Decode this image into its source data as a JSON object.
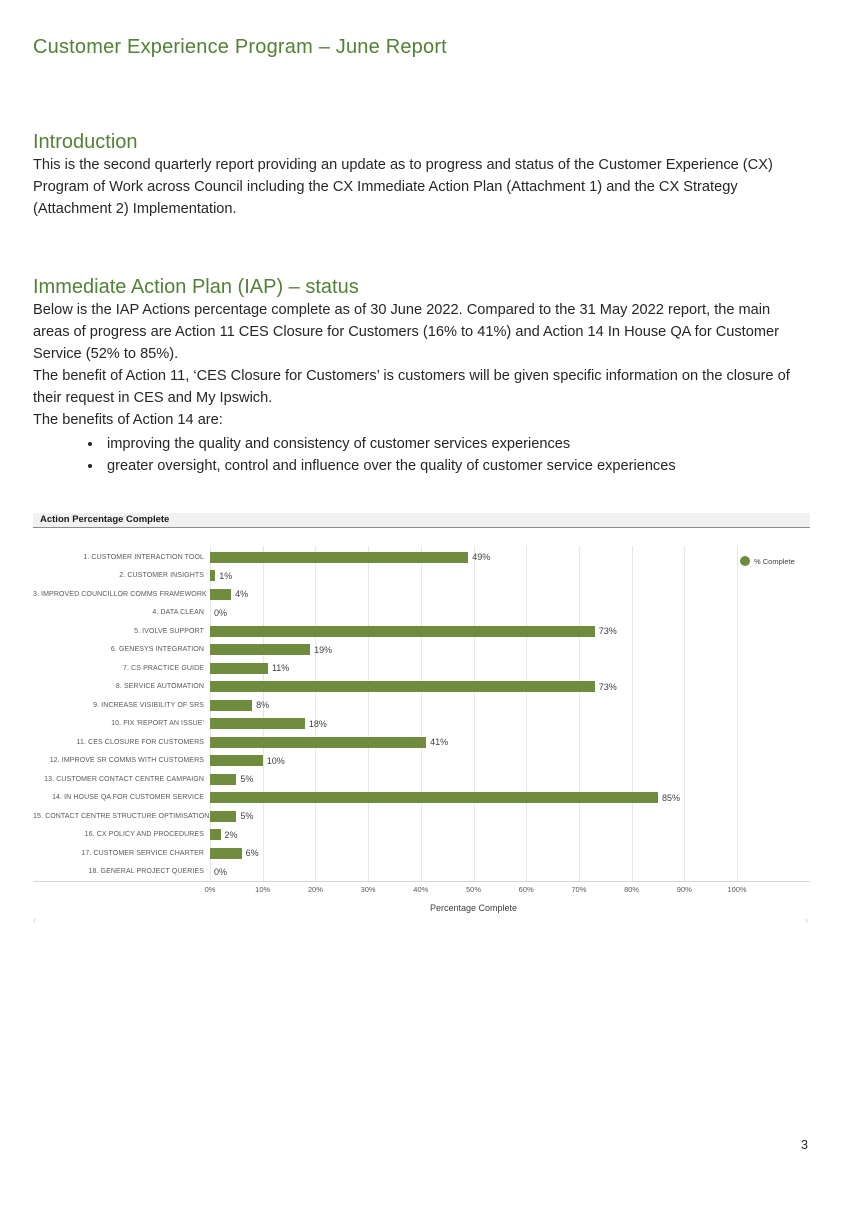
{
  "page": {
    "number": "3"
  },
  "title": "Customer Experience Program – June Report",
  "colors": {
    "heading_green": "#538135",
    "bar_green": "#6e8b3e"
  },
  "sections": {
    "introduction": {
      "heading": "Introduction",
      "body": "This is the second quarterly report providing an update as to progress and status of the Customer Experience (CX) Program of Work across Council including the CX Immediate Action Plan (Attachment 1) and the CX Strategy (Attachment 2) Implementation."
    },
    "iap": {
      "heading": "Immediate Action Plan (IAP) – status",
      "para1": "Below is the IAP Actions percentage complete as of 30 June 2022. Compared to the 31 May 2022 report, the main areas of progress are Action 11 CES Closure for Customers (16% to 41%) and Action 14 In House QA for Customer Service (52% to 85%).",
      "para2": "The benefit of Action 11, ‘CES Closure for Customers’ is customers will be given specific information on the closure of their request in CES and My Ipswich.",
      "para3": "The benefits of Action 14 are:",
      "bullets": [
        "improving the quality and consistency of customer services experiences",
        "greater oversight, control and influence over the quality of customer service experiences"
      ]
    }
  },
  "chart_data": {
    "type": "bar",
    "orientation": "horizontal",
    "title": "Action Percentage Complete",
    "categories": [
      "1. CUSTOMER INTERACTION TOOL",
      "2. CUSTOMER INSIGHTS",
      "3. IMPROVED COUNCILLOR COMMS FRAMEWORK",
      "4. DATA CLEAN",
      "5. IVOLVE SUPPORT",
      "6. GENESYS INTEGRATION",
      "7. CS PRACTICE GUIDE",
      "8. SERVICE AUTOMATION",
      "9. INCREASE VISIBILITY OF SRs",
      "10. FIX 'REPORT AN ISSUE'",
      "11. CES CLOSURE FOR CUSTOMERS",
      "12. IMPROVE SR COMMS WITH CUSTOMERS",
      "13. CUSTOMER CONTACT CENTRE CAMPAIGN",
      "14. IN HOUSE QA FOR CUSTOMER SERVICE",
      "15. CONTACT CENTRE STRUCTURE OPTIMISATION",
      "16. CX POLICY AND PROCEDURES",
      "17. CUSTOMER SERVICE CHARTER",
      "18. GENERAL PROJECT QUERIES"
    ],
    "values": [
      49,
      1,
      4,
      0,
      73,
      19,
      11,
      73,
      8,
      18,
      41,
      10,
      5,
      85,
      5,
      2,
      6,
      0
    ],
    "value_labels": [
      "49%",
      "1%",
      "4%",
      "0%",
      "73%",
      "19%",
      "11%",
      "73%",
      "8%",
      "18%",
      "41%",
      "10%",
      "5%",
      "85%",
      "5%",
      "2%",
      "6%",
      "0%"
    ],
    "xlabel": "Percentage Complete",
    "x_ticks": [
      "0%",
      "10%",
      "20%",
      "30%",
      "40%",
      "50%",
      "60%",
      "70%",
      "80%",
      "90%",
      "100%"
    ],
    "xlim": [
      0,
      100
    ],
    "grid": true,
    "legend": {
      "label": "% Complete"
    },
    "bar_color": "#6e8b3e"
  }
}
